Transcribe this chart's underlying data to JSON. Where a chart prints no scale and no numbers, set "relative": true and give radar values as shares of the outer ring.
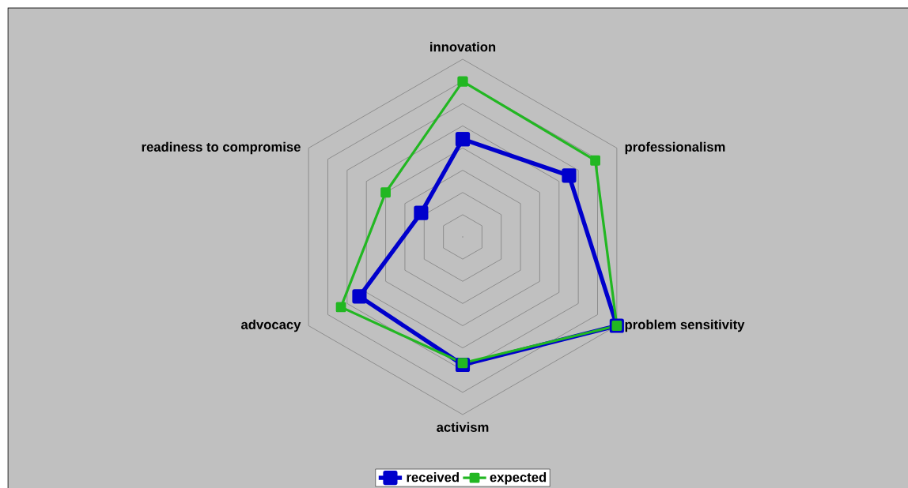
{
  "chart_data": {
    "type": "radar",
    "relative": true,
    "grid": true,
    "legend": "bottom",
    "marker": "square",
    "categories": [
      "innovation",
      "professionalism",
      "problem sensitivity",
      "activism",
      "advocacy",
      "readiness to compromise"
    ],
    "series": [
      {
        "name": "received",
        "color": "#0000cc",
        "values": [
          0.55,
          0.69,
          1.0,
          0.72,
          0.67,
          0.27
        ]
      },
      {
        "name": "expected",
        "color": "#22b722",
        "values": [
          0.875,
          0.86,
          1.0,
          0.71,
          0.79,
          0.5
        ]
      }
    ]
  }
}
